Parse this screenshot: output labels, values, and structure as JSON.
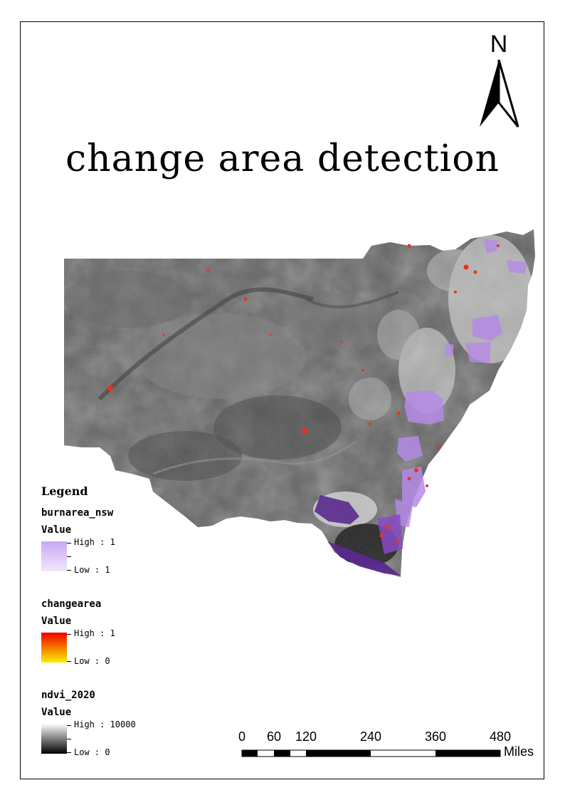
{
  "title": "change area detection",
  "north_arrow": {
    "label": "N",
    "icon": "north-arrow-icon"
  },
  "legend": {
    "heading": "Legend",
    "layers": [
      {
        "name": "burnarea_nsw",
        "field": "Value",
        "high": "High : 1",
        "low": "Low : 1",
        "colors": [
          "#c9a8f4",
          "#f1e8fb"
        ]
      },
      {
        "name": "changearea",
        "field": "Value",
        "high": "High : 1",
        "low": "Low : 0",
        "colors": [
          "#f20000",
          "#f7f000"
        ]
      },
      {
        "name": "ndvi_2020",
        "field": "Value",
        "high": "High : 10000",
        "low": "Low : 0",
        "colors": [
          "#ffffff",
          "#000000"
        ]
      }
    ]
  },
  "scale_bar": {
    "labels": [
      "0",
      "60",
      "120",
      "240",
      "360",
      "480"
    ],
    "units": "Miles"
  },
  "colors": {
    "burn_area": "#b48ae6",
    "burn_area_dark": "#5a2a8e",
    "change_area": "#e8341c",
    "ndvi_dark": "#2a2a2a",
    "ndvi_light": "#bdbdbd"
  }
}
